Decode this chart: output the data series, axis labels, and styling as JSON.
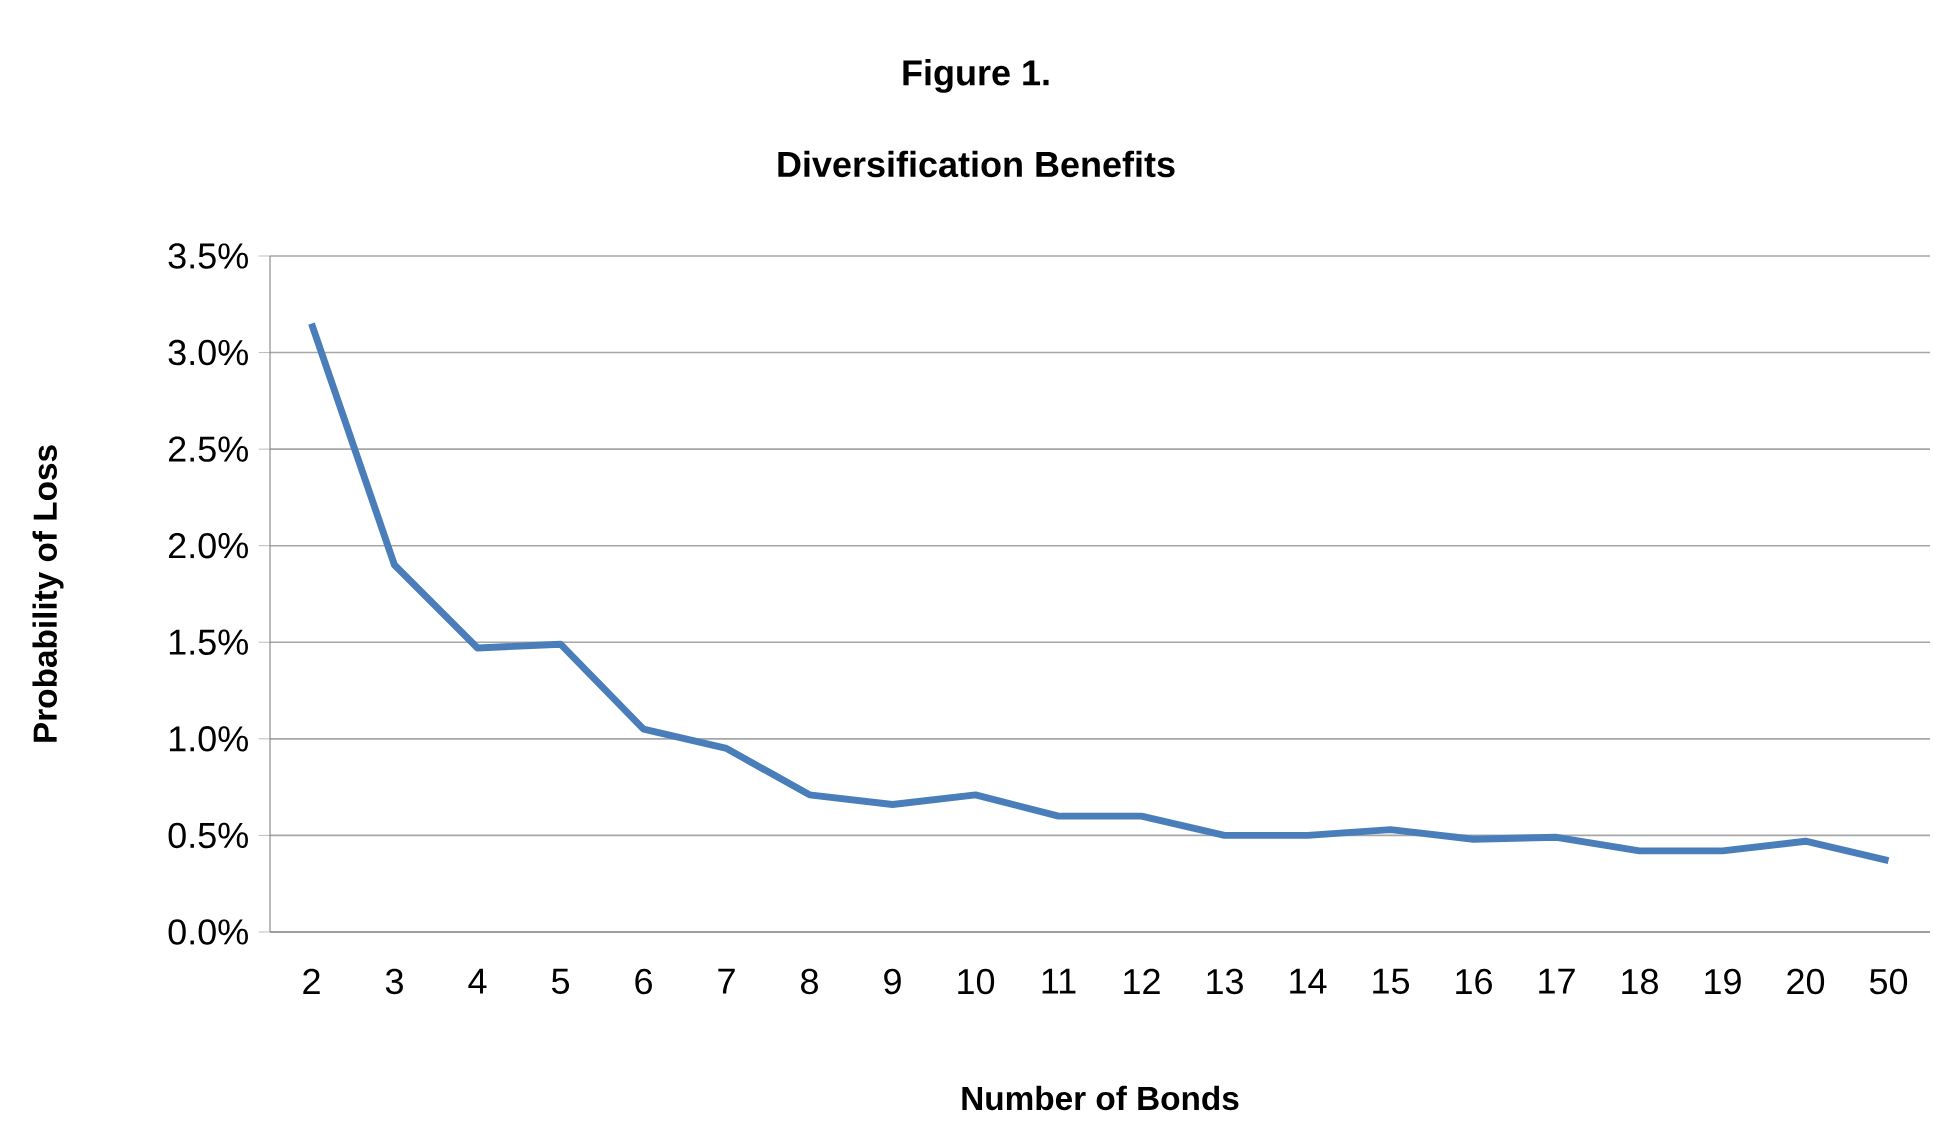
{
  "chart_data": {
    "type": "line",
    "title": "Figure 1.",
    "subtitle": "Diversification  Benefits",
    "xlabel": "Number of Bonds",
    "ylabel": "Probability of Loss",
    "categories": [
      "2",
      "3",
      "4",
      "5",
      "6",
      "7",
      "8",
      "9",
      "10",
      "11",
      "12",
      "13",
      "14",
      "15",
      "16",
      "17",
      "18",
      "19",
      "20",
      "50"
    ],
    "series": [
      {
        "color": "#4a7ebb",
        "values": [
          3.15,
          1.9,
          1.47,
          1.49,
          1.05,
          0.95,
          0.71,
          0.66,
          0.71,
          0.6,
          0.6,
          0.5,
          0.5,
          0.53,
          0.48,
          0.49,
          0.42,
          0.42,
          0.47,
          0.37
        ]
      }
    ],
    "ylim": [
      0,
      3.5
    ],
    "yticks": [
      {
        "value": 0,
        "label": "0.0%"
      },
      {
        "value": 0.5,
        "label": "0.5%"
      },
      {
        "value": 1,
        "label": "1.0%"
      },
      {
        "value": 1.5,
        "label": "1.5%"
      },
      {
        "value": 2,
        "label": "2.0%"
      },
      {
        "value": 2.5,
        "label": "2.5%"
      },
      {
        "value": 3,
        "label": "3.0%"
      },
      {
        "value": 3.5,
        "label": "3.5%"
      }
    ],
    "grid": "y"
  }
}
